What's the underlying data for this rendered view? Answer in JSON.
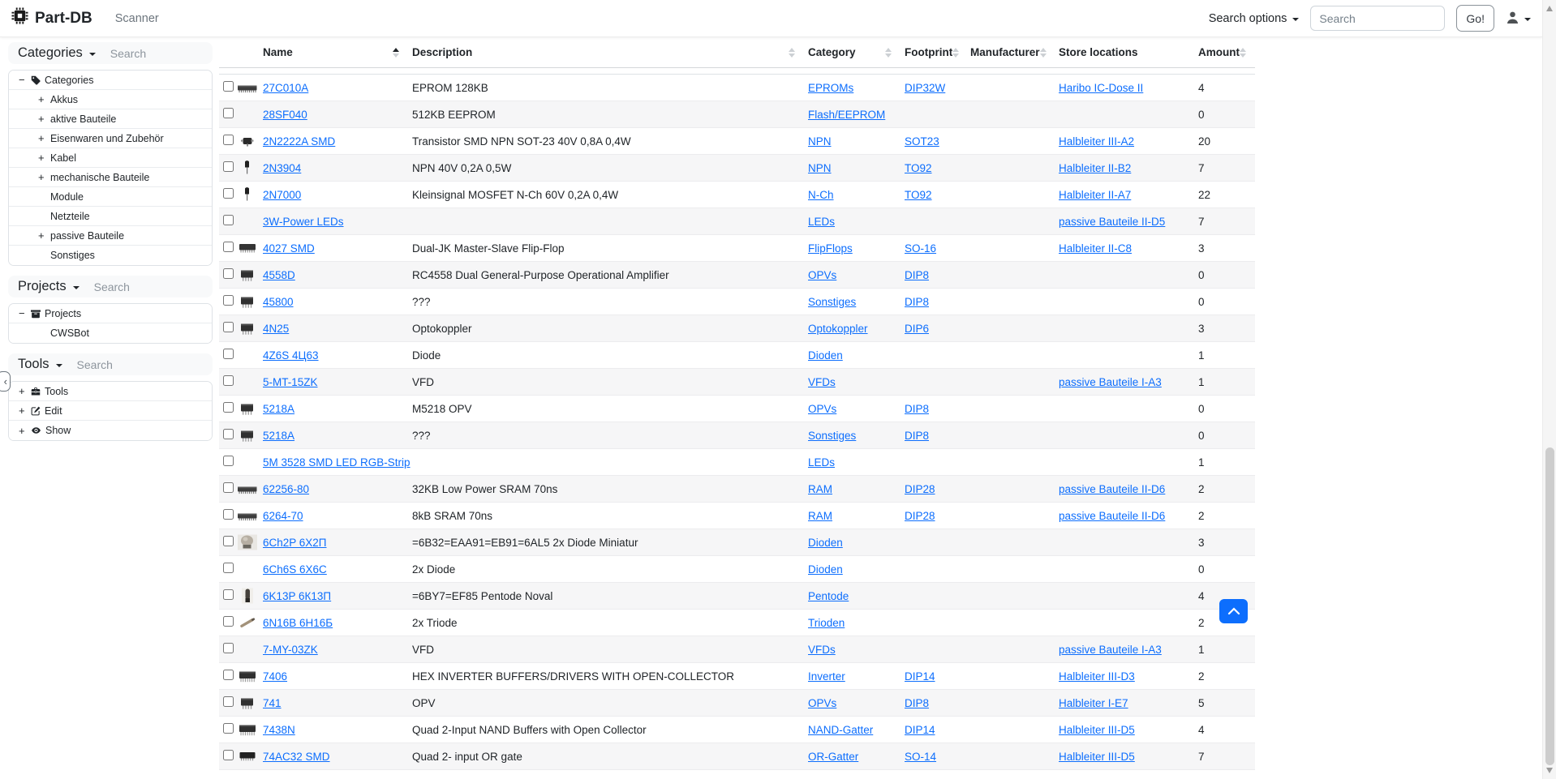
{
  "colors": {
    "accent": "#0d6efd",
    "link": "#0d6efd",
    "stripe": "#f6f6f7"
  },
  "navbar": {
    "brand": "Part-DB",
    "brand_icon": "cpu-icon",
    "scanner_label": "Scanner",
    "search_options_label": "Search options",
    "search_placeholder": "Search",
    "go_label": "Go!",
    "user_icon": "person-icon"
  },
  "sidebar": {
    "collapse_icon": "chevron-left-icon",
    "collapse_glyph": "‹",
    "sections": [
      {
        "title": "Categories",
        "search_placeholder": "Search",
        "tree": [
          {
            "toggle": "-",
            "icon": "tag-icon",
            "label": "Categories",
            "depth": 0
          },
          {
            "toggle": "+",
            "icon": "",
            "label": "Akkus",
            "depth": 1
          },
          {
            "toggle": "+",
            "icon": "",
            "label": "aktive Bauteile",
            "depth": 1
          },
          {
            "toggle": "+",
            "icon": "",
            "label": "Eisenwaren und Zubehör",
            "depth": 1
          },
          {
            "toggle": "+",
            "icon": "",
            "label": "Kabel",
            "depth": 1
          },
          {
            "toggle": "+",
            "icon": "",
            "label": "mechanische Bauteile",
            "depth": 1
          },
          {
            "toggle": "",
            "icon": "",
            "label": "Module",
            "depth": 1
          },
          {
            "toggle": "",
            "icon": "",
            "label": "Netzteile",
            "depth": 1
          },
          {
            "toggle": "+",
            "icon": "",
            "label": "passive Bauteile",
            "depth": 1
          },
          {
            "toggle": "",
            "icon": "",
            "label": "Sonstiges",
            "depth": 1
          }
        ]
      },
      {
        "title": "Projects",
        "search_placeholder": "Search",
        "tree": [
          {
            "toggle": "-",
            "icon": "archive-icon",
            "label": "Projects",
            "depth": 0
          },
          {
            "toggle": "",
            "icon": "",
            "label": "CWSBot",
            "depth": 1
          }
        ]
      },
      {
        "title": "Tools",
        "search_placeholder": "Search",
        "tree": [
          {
            "toggle": "+",
            "icon": "toolbox-icon",
            "label": "Tools",
            "depth": 0
          },
          {
            "toggle": "+",
            "icon": "edit-icon",
            "label": "Edit",
            "depth": 0
          },
          {
            "toggle": "+",
            "icon": "eye-icon",
            "label": "Show",
            "depth": 0
          }
        ]
      }
    ]
  },
  "table": {
    "columns": [
      "Name",
      "Description",
      "Category",
      "Footprint",
      "Manufacturer",
      "Store locations",
      "Amount"
    ],
    "sort": {
      "column": "Name",
      "direction": "asc"
    },
    "rows": [
      {
        "image": "dip-h",
        "name": "27C010A",
        "description": "EPROM 128KB",
        "category": "EPROMs",
        "footprint": "DIP32W",
        "manufacturer": "",
        "store_location": "Haribo IC-Dose II",
        "amount": "4"
      },
      {
        "image": "",
        "name": "28SF040",
        "description": "512KB EEPROM",
        "category": "Flash/EEPROM",
        "footprint": "",
        "manufacturer": "",
        "store_location": "",
        "amount": "0"
      },
      {
        "image": "sot23",
        "name": "2N2222A SMD",
        "description": "Transistor SMD NPN SOT-23 40V 0,8A 0,4W",
        "category": "NPN",
        "footprint": "SOT23",
        "manufacturer": "",
        "store_location": "Halbleiter III-A2",
        "amount": "20"
      },
      {
        "image": "to92",
        "name": "2N3904",
        "description": "NPN 40V 0,2A 0,5W",
        "category": "NPN",
        "footprint": "TO92",
        "manufacturer": "",
        "store_location": "Halbleiter II-B2",
        "amount": "7"
      },
      {
        "image": "to92",
        "name": "2N7000",
        "description": "Kleinsignal MOSFET N-Ch 60V 0,2A 0,4W",
        "category": "N-Ch",
        "footprint": "TO92",
        "manufacturer": "",
        "store_location": "Halbleiter II-A7",
        "amount": "22"
      },
      {
        "image": "",
        "name": "3W-Power LEDs",
        "description": "",
        "category": "LEDs",
        "footprint": "",
        "manufacturer": "",
        "store_location": "passive Bauteile II-D5",
        "amount": "7"
      },
      {
        "image": "so16",
        "name": "4027 SMD",
        "description": "Dual-JK Master-Slave Flip-Flop",
        "category": "FlipFlops",
        "footprint": "SO-16",
        "manufacturer": "",
        "store_location": "Halbleiter II-C8",
        "amount": "3"
      },
      {
        "image": "dip8",
        "name": "4558D",
        "description": "RC4558 Dual General-Purpose Operational Amplifier",
        "category": "OPVs",
        "footprint": "DIP8",
        "manufacturer": "",
        "store_location": "",
        "amount": "0"
      },
      {
        "image": "dip8",
        "name": "45800",
        "description": "???",
        "category": "Sonstiges",
        "footprint": "DIP8",
        "manufacturer": "",
        "store_location": "",
        "amount": "0"
      },
      {
        "image": "dip8",
        "name": "4N25",
        "description": "Optokoppler",
        "category": "Optokoppler",
        "footprint": "DIP6",
        "manufacturer": "",
        "store_location": "",
        "amount": "3"
      },
      {
        "image": "",
        "name": "4Z6S 4Ц63",
        "description": "Diode",
        "category": "Dioden",
        "footprint": "",
        "manufacturer": "",
        "store_location": "",
        "amount": "1"
      },
      {
        "image": "",
        "name": "5-MT-15ZK",
        "description": "VFD",
        "category": "VFDs",
        "footprint": "",
        "manufacturer": "",
        "store_location": "passive Bauteile I-A3",
        "amount": "1"
      },
      {
        "image": "dip8",
        "name": "5218A",
        "description": "M5218 OPV",
        "category": "OPVs",
        "footprint": "DIP8",
        "manufacturer": "",
        "store_location": "",
        "amount": "0"
      },
      {
        "image": "dip8",
        "name": "5218A",
        "description": "???",
        "category": "Sonstiges",
        "footprint": "DIP8",
        "manufacturer": "",
        "store_location": "",
        "amount": "0"
      },
      {
        "image": "",
        "name": "5M 3528 SMD LED RGB-Strip",
        "description": "",
        "category": "LEDs",
        "footprint": "",
        "manufacturer": "",
        "store_location": "",
        "amount": "1"
      },
      {
        "image": "dip-h",
        "name": "62256-80",
        "description": "32KB Low Power SRAM 70ns",
        "category": "RAM",
        "footprint": "DIP28",
        "manufacturer": "",
        "store_location": "passive Bauteile II-D6",
        "amount": "2"
      },
      {
        "image": "dip-h",
        "name": "6264-70",
        "description": "8kB SRAM 70ns",
        "category": "RAM",
        "footprint": "DIP28",
        "manufacturer": "",
        "store_location": "passive Bauteile II-D6",
        "amount": "2"
      },
      {
        "image": "tube-photo",
        "name": "6Ch2P 6Х2П",
        "description": "=6B32=EAA91=EB91=6AL5 2x Diode Miniatur",
        "category": "Dioden",
        "footprint": "",
        "manufacturer": "",
        "store_location": "",
        "amount": "3"
      },
      {
        "image": "",
        "name": "6Ch6S 6Х6С",
        "description": "2x Diode",
        "category": "Dioden",
        "footprint": "",
        "manufacturer": "",
        "store_location": "",
        "amount": "0"
      },
      {
        "image": "tube-v",
        "name": "6K13P 6К13П",
        "description": "=6BY7=EF85 Pentode Noval",
        "category": "Pentode",
        "footprint": "",
        "manufacturer": "",
        "store_location": "",
        "amount": "4"
      },
      {
        "image": "tube-diag",
        "name": "6N16B 6Н16Б",
        "description": "2x Triode",
        "category": "Trioden",
        "footprint": "",
        "manufacturer": "",
        "store_location": "",
        "amount": "2"
      },
      {
        "image": "",
        "name": "7-MY-03ZK",
        "description": "VFD",
        "category": "VFDs",
        "footprint": "",
        "manufacturer": "",
        "store_location": "passive Bauteile I-A3",
        "amount": "1"
      },
      {
        "image": "dip14",
        "name": "7406",
        "description": "HEX INVERTER BUFFERS/DRIVERS WITH OPEN-COLLECTOR",
        "category": "Inverter",
        "footprint": "DIP14",
        "manufacturer": "",
        "store_location": "Halbleiter III-D3",
        "amount": "2"
      },
      {
        "image": "dip8",
        "name": "741",
        "description": "OPV",
        "category": "OPVs",
        "footprint": "DIP8",
        "manufacturer": "",
        "store_location": "Halbleiter I-E7",
        "amount": "5"
      },
      {
        "image": "dip14",
        "name": "7438N",
        "description": "Quad 2-Input NAND Buffers with Open Collector",
        "category": "NAND-Gatter",
        "footprint": "DIP14",
        "manufacturer": "",
        "store_location": "Halbleiter III-D5",
        "amount": "4"
      },
      {
        "image": "so14",
        "name": "74AC32 SMD",
        "description": "Quad 2- input OR gate",
        "category": "OR-Gatter",
        "footprint": "SO-14",
        "manufacturer": "",
        "store_location": "Halbleiter III-D5",
        "amount": "7"
      }
    ]
  },
  "floating": {
    "scroll_top_icon": "chevron-up-icon"
  },
  "scrollbar": {
    "up_icon": "scroll-up-arrow",
    "down_icon": "scroll-down-arrow"
  }
}
